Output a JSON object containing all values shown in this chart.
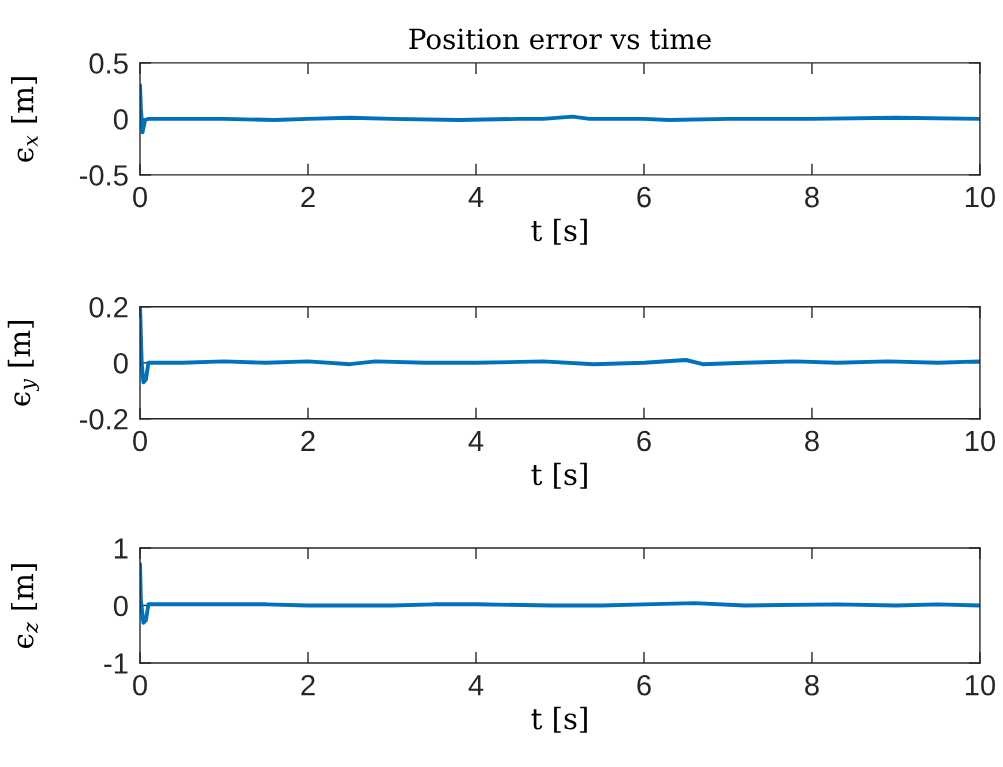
{
  "chart_data": [
    {
      "type": "line",
      "title": "Position error vs time",
      "xlabel": "t [s]",
      "ylabel": "ϵ$_{x}$ [m]",
      "color": "#0072bd",
      "xlim": [
        0,
        10
      ],
      "xticks": [
        0,
        2,
        4,
        6,
        8,
        10
      ],
      "ylim": [
        -0.5,
        0.5
      ],
      "yticks": [
        -0.5,
        0,
        0.5
      ],
      "x": [
        0,
        0.01,
        0.03,
        0.06,
        0.1,
        0.5,
        1.0,
        1.6,
        2.0,
        2.5,
        3.0,
        3.8,
        4.5,
        4.8,
        5.15,
        5.35,
        6.0,
        6.3,
        7.0,
        8.0,
        9.0,
        10
      ],
      "values": [
        0.3,
        0.1,
        -0.12,
        -0.01,
        0,
        0,
        0,
        -0.01,
        0,
        0.01,
        0,
        -0.01,
        0,
        0,
        0.02,
        0,
        0,
        -0.01,
        0,
        0,
        0.01,
        0
      ]
    },
    {
      "type": "line",
      "xlabel": "t [s]",
      "ylabel": "ϵ$_{y}$ [m]",
      "color": "#0072bd",
      "xlim": [
        0,
        10
      ],
      "xticks": [
        0,
        2,
        4,
        6,
        8,
        10
      ],
      "ylim": [
        -0.2,
        0.2
      ],
      "yticks": [
        -0.2,
        0,
        0.2
      ],
      "x": [
        0,
        0.02,
        0.04,
        0.07,
        0.1,
        0.5,
        1.0,
        1.5,
        2.0,
        2.5,
        2.8,
        3.4,
        4.0,
        4.8,
        5.4,
        6.0,
        6.5,
        6.7,
        7.2,
        7.8,
        8.3,
        8.9,
        9.5,
        10
      ],
      "values": [
        0.2,
        0,
        -0.07,
        -0.06,
        0,
        0,
        0.005,
        0,
        0.005,
        -0.005,
        0.005,
        0,
        0,
        0.005,
        -0.005,
        0,
        0.01,
        -0.005,
        0,
        0.005,
        0,
        0.005,
        0,
        0.005
      ]
    },
    {
      "type": "line",
      "xlabel": "t [s]",
      "ylabel": "ϵ$_{z}$ [m]",
      "color": "#0072bd",
      "xlim": [
        0,
        10
      ],
      "xticks": [
        0,
        2,
        4,
        6,
        8,
        10
      ],
      "ylim": [
        -1,
        1
      ],
      "yticks": [
        -1,
        0,
        1
      ],
      "x": [
        0,
        0.01,
        0.04,
        0.07,
        0.1,
        0.5,
        1.0,
        1.5,
        2.0,
        3.0,
        3.5,
        4.0,
        4.9,
        5.5,
        6.0,
        6.6,
        7.2,
        8.3,
        9.0,
        9.5,
        10
      ],
      "values": [
        0.72,
        0.1,
        -0.3,
        -0.26,
        0.02,
        0.02,
        0.02,
        0.02,
        0,
        0,
        0.02,
        0.02,
        0,
        0,
        0.02,
        0.04,
        0,
        0.02,
        0,
        0.02,
        0
      ]
    }
  ]
}
